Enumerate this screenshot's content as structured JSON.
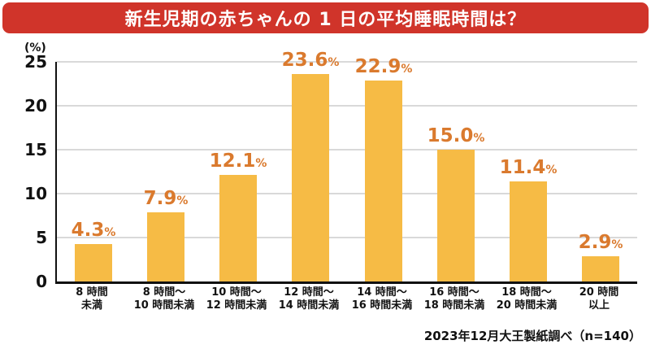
{
  "title": "新生児期の赤ちゃんの 1 日の平均睡眠時間は？",
  "source": "2023年12月大王製紙調べ（n=140）",
  "colors": {
    "banner_red": "#d0342a",
    "bar_fill": "#f6bb45",
    "value_label": "#da7a2e",
    "gridline": "#d9d9d9",
    "axis": "#111111",
    "text": "#111111"
  },
  "chart_data": {
    "type": "bar",
    "title": "新生児期の赤ちゃんの 1 日の平均睡眠時間は？",
    "ylabel": "(%)",
    "xlabel": "",
    "ylim": [
      0,
      25
    ],
    "yticks": [
      0,
      5,
      10,
      15,
      20,
      25
    ],
    "grid": true,
    "legend": false,
    "categories": [
      "8時間未満",
      "8時間～10時間未満",
      "10時間～12時間未満",
      "12時間～14時間未満",
      "14時間～16時間未満",
      "16時間～18時間未満",
      "18時間～20時間未満",
      "20時間以上"
    ],
    "category_lines": [
      [
        "8 時間",
        "未満"
      ],
      [
        "8 時間～",
        "10 時間未満"
      ],
      [
        "10 時間～",
        "12 時間未満"
      ],
      [
        "12 時間～",
        "14 時間未満"
      ],
      [
        "14 時間～",
        "16 時間未満"
      ],
      [
        "16 時間～",
        "18 時間未満"
      ],
      [
        "18 時間～",
        "20 時間未満"
      ],
      [
        "20 時間",
        "以上"
      ]
    ],
    "values": [
      4.3,
      7.9,
      12.1,
      23.6,
      22.9,
      15.0,
      11.4,
      2.9
    ],
    "value_labels": [
      "4.3",
      "7.9",
      "12.1",
      "23.6",
      "22.9",
      "15.0",
      "11.4",
      "2.9"
    ],
    "value_suffix": "%",
    "source": "2023年12月大王製紙調べ（n=140）"
  }
}
